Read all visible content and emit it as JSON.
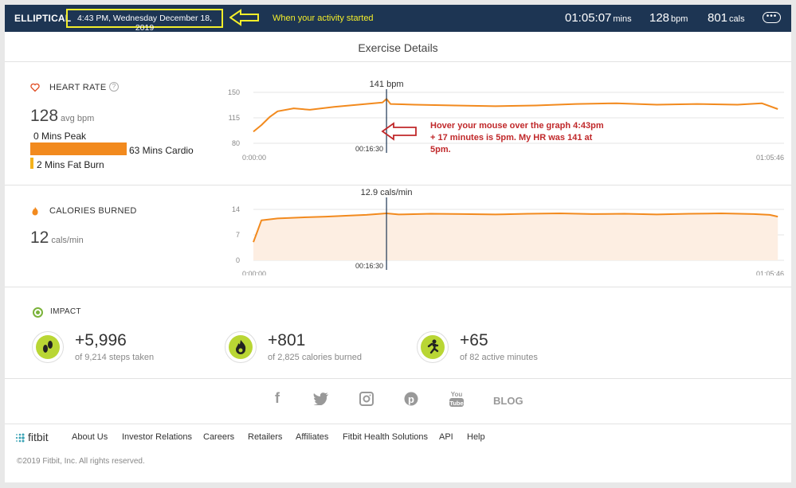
{
  "topbar": {
    "activity": "ELLIPTICAL",
    "start_time": "4:43 PM, Wednesday December 18, 2019",
    "note": "When your activity started",
    "duration": "01:05:07",
    "duration_unit": "mins",
    "avg_bpm": "128",
    "bpm_unit": "bpm",
    "calories": "801",
    "cal_unit": "cals",
    "more_icon": "more-dots-icon",
    "colors": {
      "bar": "#1d3553",
      "highlight": "#f4ee2a"
    }
  },
  "page_title": "Exercise Details",
  "heart_rate": {
    "icon": "heart-icon",
    "label": "HEART RATE",
    "help_icon": "help-icon",
    "avg_value": "128",
    "avg_unit": "avg bpm",
    "zones": [
      {
        "label": "0 Mins Peak",
        "minutes": 0,
        "color": "#e04a1f"
      },
      {
        "label": "63 Mins Cardio",
        "minutes": 63,
        "color": "#f28a1e"
      },
      {
        "label": "2 Mins Fat Burn",
        "minutes": 2,
        "color": "#f4b21b"
      }
    ],
    "chart_data": {
      "type": "line",
      "ylim": [
        80,
        150
      ],
      "y_ticks": [
        "150",
        "115",
        "80"
      ],
      "x_start": "0:00:00",
      "x_end": "01:05:46",
      "hover_value": "141 bpm",
      "hover_time": "00:16:30",
      "x": [
        0,
        1,
        2,
        3,
        5,
        7,
        10,
        13,
        16,
        16.5,
        17,
        20,
        25,
        30,
        35,
        40,
        45,
        50,
        55,
        60,
        63,
        65
      ],
      "y": [
        96,
        105,
        116,
        124,
        128,
        126,
        130,
        133,
        136,
        141,
        134,
        133,
        132,
        131,
        132,
        134,
        135,
        133,
        134,
        133,
        135,
        127
      ]
    }
  },
  "calories": {
    "icon": "flame-icon",
    "label": "CALORIES BURNED",
    "value": "12",
    "unit": "cals/min",
    "chart_data": {
      "type": "area",
      "ylim": [
        0,
        14
      ],
      "y_ticks": [
        "14",
        "7",
        "0"
      ],
      "x_start": "0:00:00",
      "x_end": "01:05:46",
      "hover_value": "12.9 cals/min",
      "hover_time": "00:16:30",
      "x": [
        0,
        0.5,
        1,
        3,
        6,
        9,
        12,
        14,
        16.5,
        18,
        22,
        26,
        30,
        34,
        38,
        42,
        46,
        50,
        54,
        58,
        62,
        64,
        65
      ],
      "y": [
        5,
        8,
        11,
        11.5,
        11.8,
        12,
        12.3,
        12.5,
        12.9,
        12.6,
        12.8,
        12.7,
        12.6,
        12.8,
        12.9,
        12.7,
        12.8,
        12.6,
        12.8,
        12.9,
        12.7,
        12.5,
        12
      ]
    }
  },
  "annotation": "Hover your mouse over the graph 4:43pm + 17 minutes is 5pm.  My HR was 141 at 5pm.",
  "impact": {
    "label": "IMPACT",
    "items": [
      {
        "icon": "steps-icon",
        "value": "+5,996",
        "sub": "of 9,214 steps taken"
      },
      {
        "icon": "flame-icon",
        "value": "+801",
        "sub": "of 2,825 calories burned"
      },
      {
        "icon": "runner-icon",
        "value": "+65",
        "sub": "of 82 active minutes"
      }
    ]
  },
  "social": {
    "items": [
      "facebook-icon",
      "twitter-icon",
      "instagram-icon",
      "pinterest-icon",
      "youtube-icon"
    ],
    "blog": "BLOG"
  },
  "footer": {
    "brand": "fitbit",
    "links": [
      "About Us",
      "Investor Relations",
      "Careers",
      "Retailers",
      "Affiliates",
      "Fitbit Health Solutions",
      "API",
      "Help"
    ],
    "copyright": "©2019 Fitbit, Inc. All rights reserved."
  }
}
